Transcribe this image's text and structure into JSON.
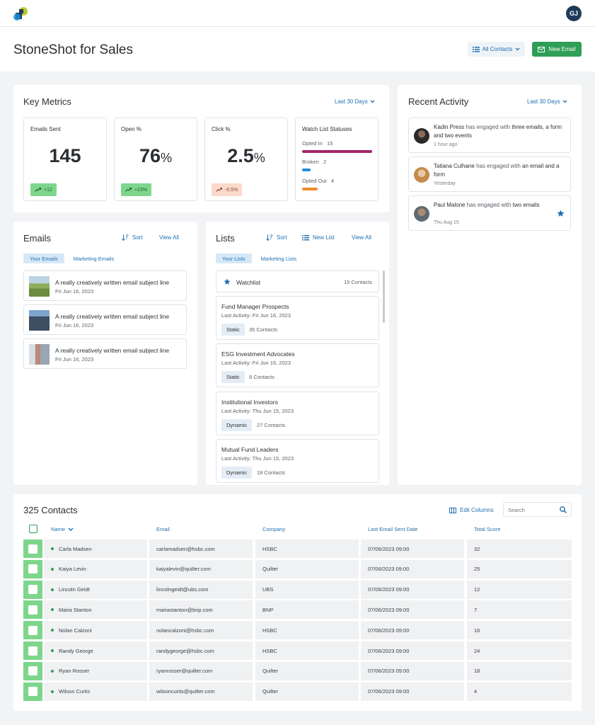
{
  "app": {
    "title": "StoneShot for Sales",
    "user_initials": "GJ"
  },
  "header": {
    "contacts_filter": "All Contacts",
    "new_email": "New Email"
  },
  "key_metrics": {
    "title": "Key Metrics",
    "range": "Last 30 Days",
    "emails_sent": {
      "label": "Emails Sent",
      "value": "145",
      "change": "+12"
    },
    "open": {
      "label": "Open %",
      "value": "76",
      "unit": "%",
      "change": "+23%"
    },
    "click": {
      "label": "Click %",
      "value": "2.5",
      "unit": "%",
      "change": "-0.5%"
    },
    "watch_list": {
      "label": "Watch List Statuses",
      "opted_in": {
        "label": "Opted In",
        "count": "15",
        "fraction": 1.0
      },
      "broken": {
        "label": "Broken",
        "count": "2",
        "fraction": 0.12
      },
      "opted_out": {
        "label": "Opted Out",
        "count": "4",
        "fraction": 0.22
      }
    },
    "colors": {
      "opted_in": "#a3236b",
      "broken": "#1a8fd6",
      "opted_out": "#ef8a2a"
    }
  },
  "recent_activity": {
    "title": "Recent Activity",
    "range": "Last 30 Days",
    "items": [
      {
        "name": "Kadin Press",
        "verb": "has engaged with",
        "object": "three emails, a form and two events",
        "time": "1 hour ago"
      },
      {
        "name": "Tatiana Culhane",
        "verb": "has engaged with",
        "object": "an email and a form",
        "time": "Yesterday"
      },
      {
        "name": "Paul Malone",
        "verb": "has engaged with",
        "object": "two emails",
        "time": "Thu Aug 15"
      }
    ]
  },
  "emails": {
    "title": "Emails",
    "sort": "Sort",
    "view_all": "View All",
    "tabs": [
      "Your Emails",
      "Marketing Emails"
    ],
    "items": [
      {
        "subject": "A really creatively written email subject line",
        "date": "Fri Jun 16, 2023"
      },
      {
        "subject": "A really creatively written email subject line",
        "date": "Fri Jun 16, 2023"
      },
      {
        "subject": "A really creatively written email subject line",
        "date": "Fri Jun 16, 2023"
      }
    ]
  },
  "lists": {
    "title": "Lists",
    "sort": "Sort",
    "new_list": "New List",
    "view_all": "View All",
    "tabs": [
      "Your Lists",
      "Marketing Lists"
    ],
    "watchlist": {
      "name": "Watchlist",
      "count": "15 Contacts"
    },
    "items": [
      {
        "name": "Fund Manager Prospects",
        "activity": "Last Activity: Fri Jun 16, 2023",
        "type": "Static",
        "count": "35 Contacts"
      },
      {
        "name": "ESG Investment Advocates",
        "activity": "Last Activity: Fri Jun 16, 2023",
        "type": "Static",
        "count": "8 Contacts"
      },
      {
        "name": "Institutional Investors",
        "activity": "Last Activity: Thu Jun 15, 2023",
        "type": "Dynamic",
        "count": "27 Contacts"
      },
      {
        "name": "Mutual Fund Leaders",
        "activity": "Last Activity: Thu Jun 15, 2023",
        "type": "Dynamic",
        "count": "18 Contacts"
      }
    ]
  },
  "contacts": {
    "title": "325 Contacts",
    "edit_columns": "Edit Columns",
    "search_placeholder": "Search",
    "columns": [
      "Name",
      "Email",
      "Company",
      "Last Email Sent Date",
      "Total Score"
    ],
    "rows": [
      {
        "name": "Carla Madsen",
        "email": "carlamadsen@hsbc.com",
        "company": "HSBC",
        "date": "07/06/2023 09:00",
        "score": "32"
      },
      {
        "name": "Kaiya Levin",
        "email": "kaiyalevin@quilter.com",
        "company": "Quilter",
        "date": "07/06/2023 09:00",
        "score": "25"
      },
      {
        "name": "Lincoln Geidt",
        "email": "lincolngeidt@ubs.com",
        "company": "UBS",
        "date": "07/06/2023 09:00",
        "score": "12"
      },
      {
        "name": "Maria Stanton",
        "email": "mariastanton@bnp.com",
        "company": "BNP",
        "date": "07/06/2023 09:00",
        "score": "7"
      },
      {
        "name": "Nolan Calzoni",
        "email": "nolancalzoni@hsbc.com",
        "company": "HSBC",
        "date": "07/06/2023 09:00",
        "score": "16"
      },
      {
        "name": "Randy George",
        "email": "randygeorge@hsbc.com",
        "company": "HSBC",
        "date": "07/06/2023 09:00",
        "score": "24"
      },
      {
        "name": "Ryan Rosser",
        "email": "ryanrosser@quilter.com",
        "company": "Quilter",
        "date": "07/06/2023 09:00",
        "score": "18"
      },
      {
        "name": "Wilson Curtis",
        "email": "wilsoncurtis@quilter.com",
        "company": "Quilter",
        "date": "07/06/2023 09:00",
        "score": "4"
      }
    ]
  },
  "icons": {
    "logo": "stoneshot-logo",
    "list": "list-icon",
    "mail": "mail-icon",
    "chevron": "chevron-down-icon",
    "trend_up": "trend-up-icon",
    "trend_down": "trend-down-icon",
    "sort": "sort-icon",
    "star": "star-icon",
    "columns": "columns-icon",
    "search": "search-icon"
  }
}
